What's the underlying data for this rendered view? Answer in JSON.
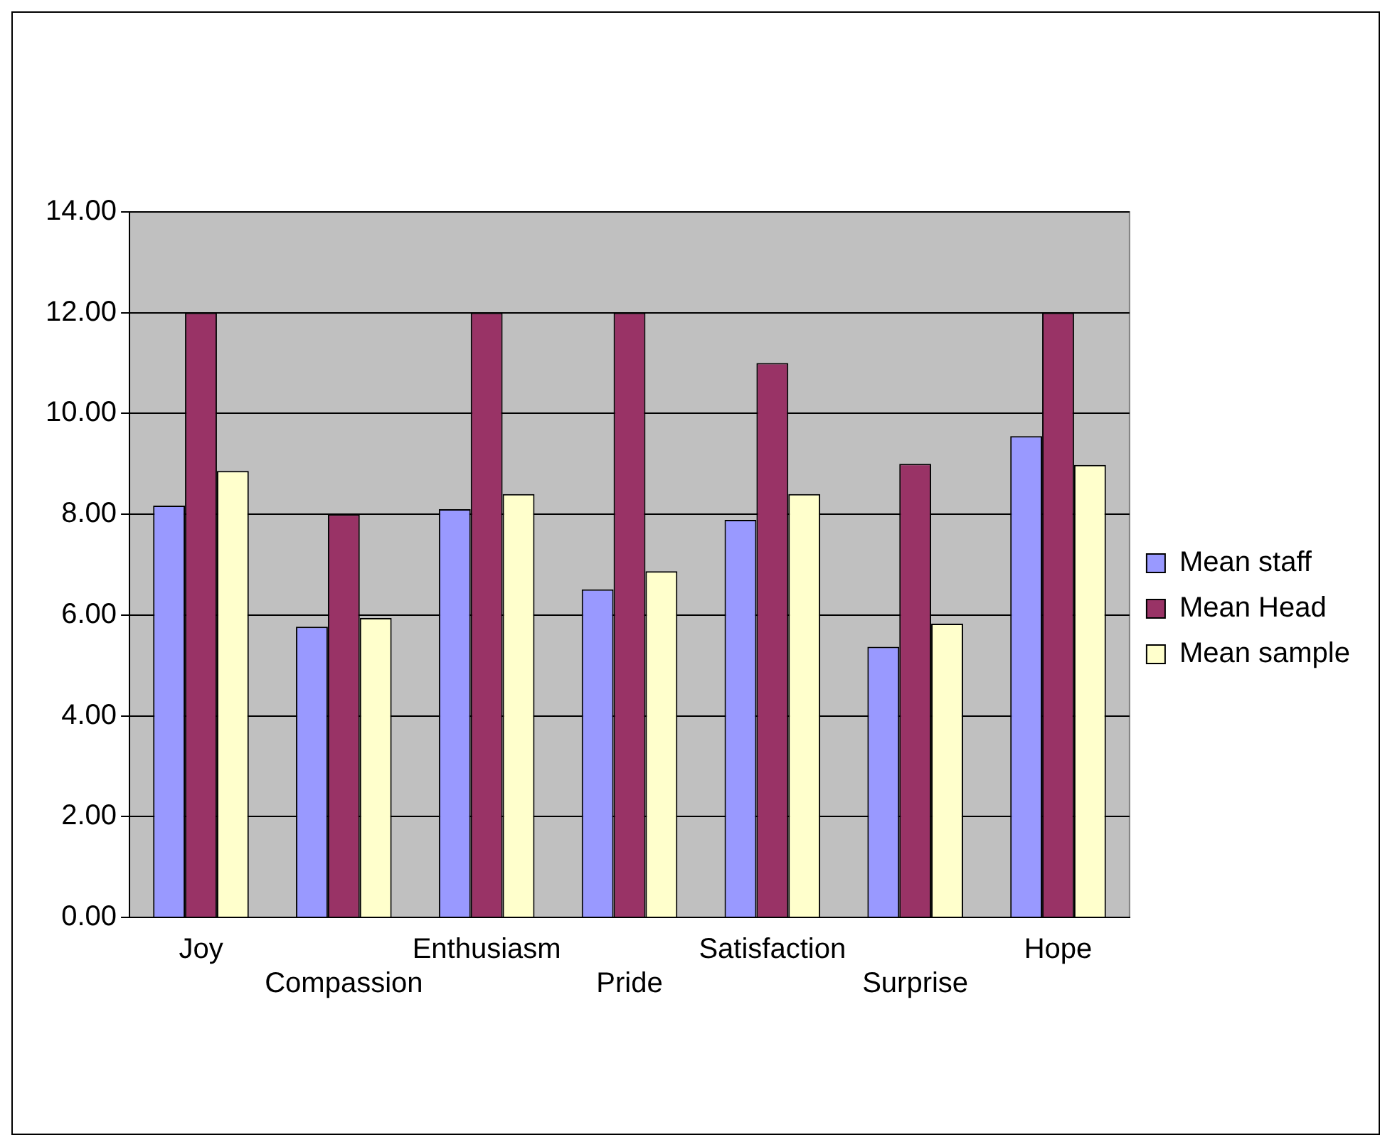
{
  "chart_data": {
    "type": "bar",
    "categories": [
      "Joy",
      "Compassion",
      "Enthusiasm",
      "Pride",
      "Satisfaction",
      "Surprise",
      "Hope"
    ],
    "series": [
      {
        "name": "Mean staff",
        "color": "#9999ff",
        "values": [
          8.17,
          5.77,
          8.1,
          6.51,
          7.89,
          5.37,
          9.55
        ]
      },
      {
        "name": "Mean Head",
        "color": "#993366",
        "values": [
          12,
          8,
          12,
          12,
          11,
          9,
          12
        ]
      },
      {
        "name": "Mean sample",
        "color": "#ffffcc",
        "values": [
          8.86,
          5.94,
          8.4,
          6.87,
          8.4,
          5.83,
          8.98
        ]
      }
    ],
    "ylim": [
      0,
      14
    ],
    "yticks": [
      {
        "value": 0,
        "label": "0.00"
      },
      {
        "value": 2,
        "label": "2.00"
      },
      {
        "value": 4,
        "label": "4.00"
      },
      {
        "value": 6,
        "label": "6.00"
      },
      {
        "value": 8,
        "label": "8.00"
      },
      {
        "value": 10,
        "label": "10.00"
      },
      {
        "value": 12,
        "label": "12.00"
      },
      {
        "value": 14,
        "label": "14.00"
      }
    ],
    "grid": "y",
    "legend": "right"
  }
}
